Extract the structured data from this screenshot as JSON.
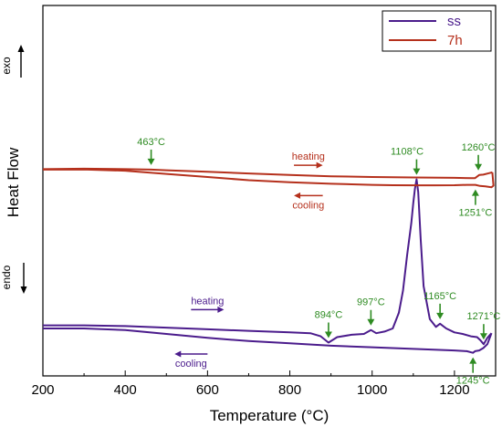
{
  "chart_data": {
    "type": "line",
    "xlabel": "Temperature (°C)",
    "ylabel": "Heat Flow",
    "xlim": [
      200,
      1300
    ],
    "xticks": [
      200,
      400,
      600,
      800,
      1000,
      1200
    ],
    "grid": false,
    "legend_position": "top-right",
    "colors": {
      "ss": "#4b1c8c",
      "7h": "#b5301c",
      "annotation": "#2e8b22"
    },
    "side_labels": {
      "exo": "exo",
      "endo": "endo"
    },
    "series": [
      {
        "name": "ss",
        "segments": {
          "heating": {
            "x": [
              200,
              300,
              400,
              500,
              600,
              700,
              800,
              850,
              875,
              894,
              915,
              950,
              980,
              997,
              1010,
              1030,
              1050,
              1065,
              1075,
              1085,
              1095,
              1100,
              1104,
              1108,
              1112,
              1118,
              1125,
              1140,
              1155,
              1165,
              1180,
              1200,
              1220,
              1240,
              1255,
              1263,
              1271,
              1280,
              1290
            ],
            "y": [
              -8.0,
              -8.0,
              -8.05,
              -8.15,
              -8.25,
              -8.35,
              -8.45,
              -8.5,
              -8.7,
              -9.1,
              -8.75,
              -8.6,
              -8.55,
              -8.3,
              -8.5,
              -8.4,
              -8.2,
              -7.2,
              -5.8,
              -3.5,
              -1.5,
              -0.2,
              0.7,
              1.3,
              0.5,
              -2.5,
              -5.5,
              -7.6,
              -8.1,
              -7.9,
              -8.2,
              -8.45,
              -8.55,
              -8.7,
              -8.75,
              -8.95,
              -9.2,
              -8.8,
              -8.5
            ]
          },
          "cooling": {
            "x": [
              1290,
              1280,
              1270,
              1260,
              1250,
              1245,
              1230,
              1200,
              1150,
              1100,
              1000,
              900,
              800,
              700,
              600,
              500,
              400,
              300,
              200
            ],
            "y": [
              -8.5,
              -9.2,
              -9.45,
              -9.6,
              -9.65,
              -9.75,
              -9.65,
              -9.6,
              -9.55,
              -9.5,
              -9.4,
              -9.3,
              -9.15,
              -9.0,
              -8.8,
              -8.55,
              -8.3,
              -8.2,
              -8.2
            ]
          }
        }
      },
      {
        "name": "7h",
        "segments": {
          "heating": {
            "x": [
              200,
              300,
              400,
              463,
              500,
              600,
              700,
              800,
              900,
              1000,
              1100,
              1200,
              1240,
              1250,
              1260,
              1270,
              1285,
              1292
            ],
            "y": [
              1.95,
              1.98,
              1.95,
              1.92,
              1.88,
              1.78,
              1.68,
              1.58,
              1.5,
              1.45,
              1.42,
              1.4,
              1.38,
              1.38,
              1.58,
              1.6,
              1.7,
              1.75
            ]
          },
          "cooling": {
            "x": [
              1292,
              1295,
              1290,
              1275,
              1262,
              1251,
              1230,
              1200,
              1150,
              1108,
              1050,
              1000,
              900,
              800,
              700,
              600,
              500,
              400,
              300,
              200
            ],
            "y": [
              1.75,
              0.9,
              0.8,
              0.85,
              0.88,
              0.95,
              0.95,
              0.93,
              0.92,
              0.92,
              0.93,
              0.95,
              1.02,
              1.12,
              1.25,
              1.45,
              1.65,
              1.85,
              1.93,
              1.92
            ]
          }
        }
      }
    ],
    "arrow_labels": [
      {
        "text": "heating",
        "series": "7h",
        "x_from": 810,
        "x_to": 880,
        "y": 1.5,
        "direction": "right"
      },
      {
        "text": "cooling",
        "series": "7h",
        "x_from": 880,
        "x_to": 810,
        "y": 0.85,
        "direction": "left"
      },
      {
        "text": "heating",
        "series": "ss",
        "x_from": 560,
        "x_to": 640,
        "y": -7.7,
        "direction": "right"
      },
      {
        "text": "cooling",
        "series": "ss",
        "x_from": 600,
        "x_to": 520,
        "y": -9.25,
        "direction": "left"
      }
    ],
    "annotations": [
      {
        "text": "463°C",
        "x": 463,
        "y": 1.92,
        "position": "above"
      },
      {
        "text": "1260°C",
        "x": 1258,
        "y": 1.58,
        "position": "above"
      },
      {
        "text": "1108°C",
        "x": 1108,
        "y": 1.3,
        "position": "above",
        "label_x": 1085
      },
      {
        "text": "1251°C",
        "x": 1251,
        "y": 0.95,
        "position": "below"
      },
      {
        "text": "894°C",
        "x": 894,
        "y": -9.1,
        "position": "above"
      },
      {
        "text": "997°C",
        "x": 997,
        "y": -8.3,
        "position": "above"
      },
      {
        "text": "1165°C",
        "x": 1165,
        "y": -7.9,
        "position": "above"
      },
      {
        "text": "1271°C",
        "x": 1271,
        "y": -9.2,
        "position": "above"
      },
      {
        "text": "1245°C",
        "x": 1245,
        "y": -9.75,
        "position": "below"
      }
    ]
  }
}
